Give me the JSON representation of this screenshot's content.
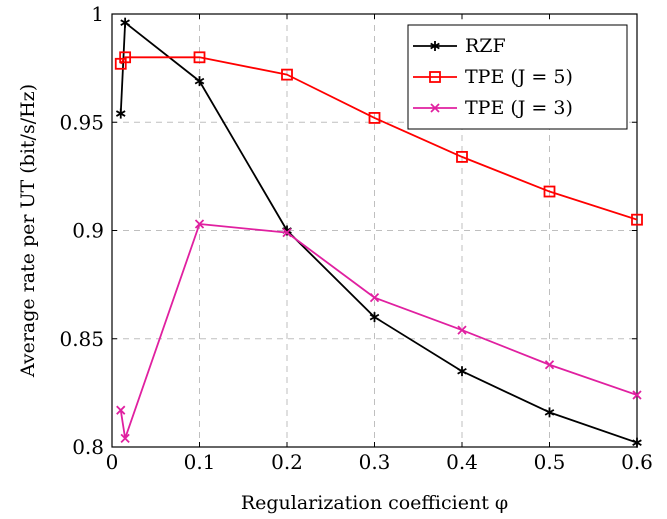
{
  "chart_data": {
    "type": "line",
    "xlabel": "Regularization coefficient φ",
    "ylabel": "Average rate per UT (bit/s/Hz)",
    "xlim": [
      0,
      0.6
    ],
    "ylim": [
      0.8,
      1.0
    ],
    "xticks": [
      0,
      0.1,
      0.2,
      0.3,
      0.4,
      0.5,
      0.6
    ],
    "xtick_labels": [
      "0",
      "0.1",
      "0.2",
      "0.3",
      "0.4",
      "0.5",
      "0.6"
    ],
    "yticks": [
      0.8,
      0.85,
      0.9,
      0.95,
      1.0
    ],
    "ytick_labels": [
      "0.8",
      "0.85",
      "0.9",
      "0.95",
      "1"
    ],
    "grid": true,
    "legend_position": "top-right",
    "series": [
      {
        "name": "RZF",
        "color": "#000000",
        "marker": "asterisk",
        "x": [
          0.01,
          0.015,
          0.1,
          0.2,
          0.3,
          0.4,
          0.5,
          0.6
        ],
        "y": [
          0.954,
          0.996,
          0.969,
          0.9,
          0.86,
          0.835,
          0.816,
          0.802
        ]
      },
      {
        "name": "TPE (J = 5)",
        "color": "#ff0000",
        "marker": "square",
        "x": [
          0.01,
          0.015,
          0.1,
          0.2,
          0.3,
          0.4,
          0.5,
          0.6
        ],
        "y": [
          0.977,
          0.98,
          0.98,
          0.972,
          0.952,
          0.934,
          0.918,
          0.905
        ]
      },
      {
        "name": "TPE (J = 3)",
        "color": "#e020a0",
        "marker": "cross",
        "x": [
          0.01,
          0.015,
          0.1,
          0.2,
          0.3,
          0.4,
          0.5,
          0.6
        ],
        "y": [
          0.817,
          0.804,
          0.903,
          0.899,
          0.869,
          0.854,
          0.838,
          0.824
        ]
      }
    ]
  }
}
